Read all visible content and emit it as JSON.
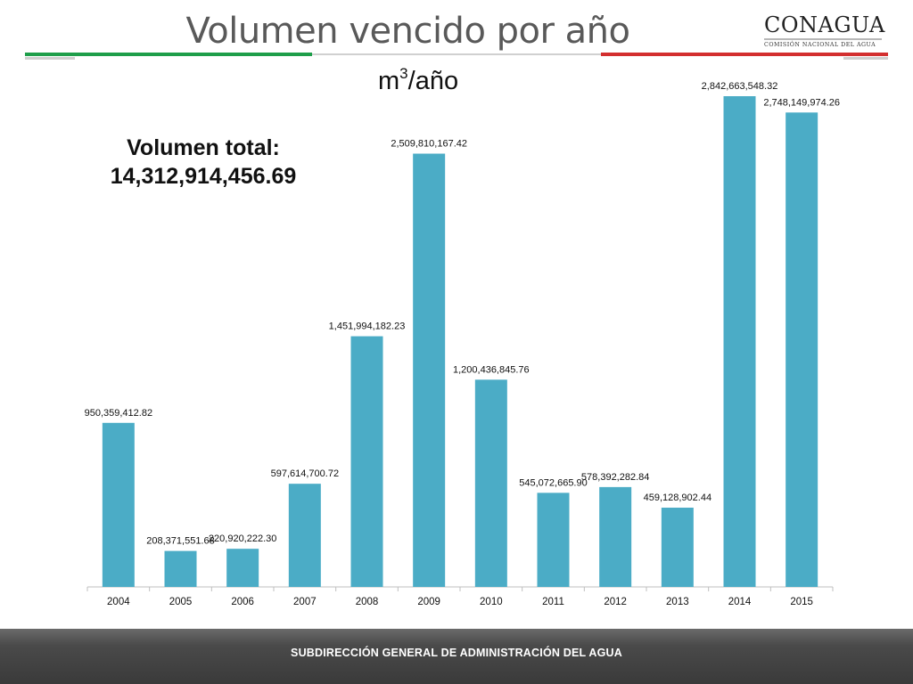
{
  "slide": {
    "title": "Volumen vencido por año",
    "units_base": "m",
    "units_exp": "3",
    "units_rest": "/año",
    "total_label": "Volumen total:",
    "total_value": "14,312,914,456.69",
    "footer": "SUBDIRECCIÓN GENERAL DE ADMINISTRACIÓN DEL AGUA",
    "logo": {
      "name": "CONAGUA",
      "subtitle": "COMISIÓN NACIONAL DEL AGUA"
    }
  },
  "colors": {
    "bar": "#4bacc6",
    "rule_green": "#1e9e4a",
    "rule_red": "#d32f2f"
  },
  "chart_data": {
    "type": "bar",
    "categories": [
      "2004",
      "2005",
      "2006",
      "2007",
      "2008",
      "2009",
      "2010",
      "2011",
      "2012",
      "2013",
      "2014",
      "2015"
    ],
    "values": [
      950359412.82,
      208371551.68,
      220920222.3,
      597614700.72,
      1451994182.23,
      2509810167.42,
      1200436845.76,
      545072665.9,
      578392282.84,
      459128902.44,
      2842663548.32,
      2748149974.26
    ],
    "labels": [
      "950,359,412.82",
      "208,371,551.68",
      "220,920,222.30",
      "597,614,700.72",
      "1,451,994,182.23",
      "2,509,810,167.42",
      "1,200,436,845.76",
      "545,072,665.90",
      "578,392,282.84",
      "459,128,902.44",
      "2,842,663,548.32",
      "2,748,149,974.26"
    ],
    "ylim": [
      0,
      2842663548.32
    ],
    "grid": false,
    "legend": "none"
  }
}
